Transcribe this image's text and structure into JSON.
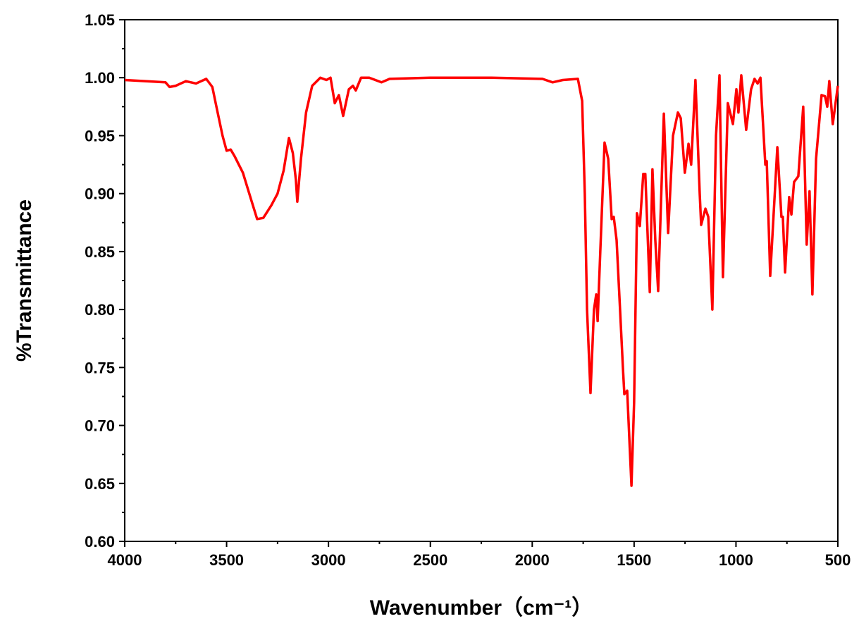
{
  "chart_data": {
    "type": "line",
    "x_label": "Wavenumber（cm⁻¹）",
    "y_label": "%Transmittance",
    "xlim": [
      4000,
      500
    ],
    "ylim": [
      0.6,
      1.05
    ],
    "xticks": [
      4000,
      3500,
      3000,
      2500,
      2000,
      1500,
      1000,
      500
    ],
    "yticks": [
      {
        "value": 0.6,
        "label": "0.60"
      },
      {
        "value": 0.65,
        "label": "0.65"
      },
      {
        "value": 0.7,
        "label": "0.70"
      },
      {
        "value": 0.75,
        "label": "0.75"
      },
      {
        "value": 0.8,
        "label": "0.80"
      },
      {
        "value": 0.85,
        "label": "0.85"
      },
      {
        "value": 0.9,
        "label": "0.90"
      },
      {
        "value": 0.95,
        "label": "0.95"
      },
      {
        "value": 1.0,
        "label": "1.00"
      },
      {
        "value": 1.05,
        "label": "1.05"
      }
    ],
    "x": [
      4000,
      3900,
      3800,
      3780,
      3750,
      3700,
      3650,
      3600,
      3570,
      3550,
      3520,
      3500,
      3480,
      3460,
      3420,
      3380,
      3350,
      3320,
      3280,
      3250,
      3220,
      3194,
      3175,
      3160,
      3153,
      3135,
      3110,
      3080,
      3040,
      3010,
      2990,
      2969,
      2949,
      2928,
      2900,
      2880,
      2866,
      2840,
      2800,
      2740,
      2700,
      2500,
      2200,
      1950,
      1900,
      1850,
      1776,
      1755,
      1742,
      1731,
      1714,
      1697,
      1686,
      1679,
      1666,
      1645,
      1627,
      1610,
      1600,
      1586,
      1569,
      1555,
      1548,
      1534,
      1513,
      1500,
      1486,
      1472,
      1455,
      1445,
      1423,
      1410,
      1396,
      1382,
      1354,
      1333,
      1309,
      1285,
      1271,
      1251,
      1233,
      1220,
      1199,
      1178,
      1171,
      1150,
      1136,
      1116,
      1098,
      1081,
      1064,
      1040,
      1015,
      998,
      988,
      974,
      950,
      926,
      909,
      894,
      880,
      856,
      849,
      832,
      797,
      777,
      770,
      759,
      739,
      728,
      715,
      694,
      670,
      653,
      639,
      625,
      607,
      580,
      563,
      552,
      542,
      525,
      500
    ],
    "series": [
      {
        "color": "#ff0000",
        "values": [
          0.998,
          0.997,
          0.996,
          0.992,
          0.993,
          0.997,
          0.995,
          0.999,
          0.992,
          0.975,
          0.95,
          0.937,
          0.938,
          0.932,
          0.918,
          0.895,
          0.878,
          0.879,
          0.89,
          0.9,
          0.92,
          0.948,
          0.935,
          0.912,
          0.893,
          0.93,
          0.97,
          0.993,
          1.0,
          0.998,
          1.0,
          0.978,
          0.985,
          0.967,
          0.99,
          0.993,
          0.989,
          1.0,
          1.0,
          0.996,
          0.999,
          1.0,
          1.0,
          0.999,
          0.996,
          0.998,
          0.999,
          0.98,
          0.9,
          0.8,
          0.728,
          0.8,
          0.813,
          0.79,
          0.85,
          0.944,
          0.93,
          0.878,
          0.88,
          0.86,
          0.8,
          0.75,
          0.727,
          0.73,
          0.648,
          0.72,
          0.883,
          0.872,
          0.917,
          0.917,
          0.815,
          0.921,
          0.86,
          0.816,
          0.969,
          0.866,
          0.95,
          0.97,
          0.965,
          0.918,
          0.943,
          0.925,
          0.998,
          0.9,
          0.873,
          0.887,
          0.88,
          0.8,
          0.95,
          1.002,
          0.828,
          0.978,
          0.96,
          0.99,
          0.97,
          1.002,
          0.955,
          0.99,
          0.999,
          0.995,
          1.0,
          0.925,
          0.928,
          0.829,
          0.94,
          0.88,
          0.88,
          0.832,
          0.897,
          0.882,
          0.91,
          0.915,
          0.975,
          0.856,
          0.902,
          0.813,
          0.93,
          0.985,
          0.984,
          0.975,
          0.997,
          0.96,
          0.993
        ]
      }
    ]
  }
}
